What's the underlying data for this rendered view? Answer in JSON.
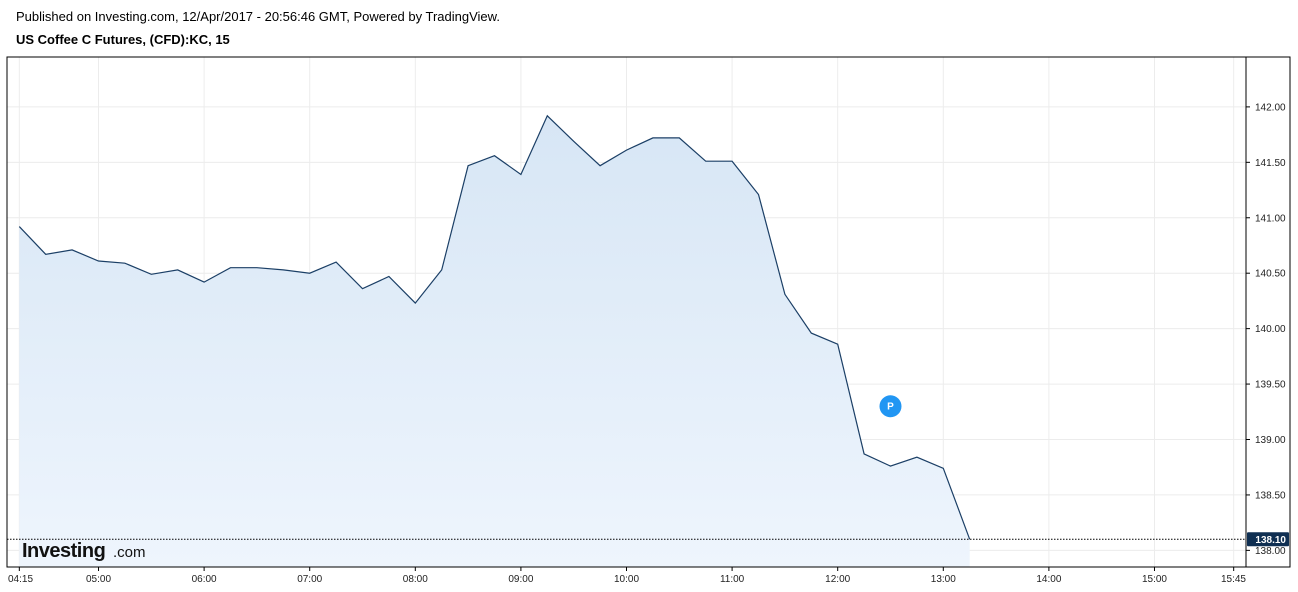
{
  "header": {
    "published": "Published on Investing.com, 12/Apr/2017 - 20:56:46 GMT, Powered by TradingView.",
    "symbol": "US Coffee C Futures, (CFD):KC, 15"
  },
  "logo": {
    "main": "Investing",
    "suffix": ".com"
  },
  "marker": {
    "label": "P",
    "time": "12:30",
    "value": 139.3,
    "color": "#2196f3"
  },
  "colors": {
    "line": "#1b3f66",
    "fill_top": "#d7e6f5",
    "fill_bottom": "#eef5fd",
    "last_badge": "#0f2f52",
    "grid": "#ececec"
  },
  "chart_data": {
    "type": "area",
    "title": "US Coffee C Futures, (CFD):KC, 15",
    "xlabel": "",
    "ylabel": "",
    "x": [
      "04:15",
      "04:30",
      "04:45",
      "05:00",
      "05:15",
      "05:30",
      "05:45",
      "06:00",
      "06:15",
      "06:30",
      "06:45",
      "07:00",
      "07:15",
      "07:30",
      "07:45",
      "08:00",
      "08:15",
      "08:30",
      "08:45",
      "09:00",
      "09:15",
      "09:30",
      "09:45",
      "10:00",
      "10:15",
      "10:30",
      "10:45",
      "11:00",
      "11:15",
      "11:30",
      "11:45",
      "12:00",
      "12:15",
      "12:30",
      "12:45",
      "13:00",
      "13:15"
    ],
    "series": [
      {
        "values": [
          140.92,
          140.67,
          140.71,
          140.61,
          140.59,
          140.49,
          140.53,
          140.42,
          140.55,
          140.55,
          140.53,
          140.5,
          140.6,
          140.36,
          140.47,
          140.23,
          140.53,
          141.47,
          141.56,
          141.39,
          141.92,
          141.69,
          141.47,
          141.61,
          141.72,
          141.72,
          141.51,
          141.51,
          141.21,
          140.31,
          139.96,
          139.86,
          138.87,
          138.76,
          138.84,
          138.74,
          138.1
        ]
      }
    ],
    "x_ticks": [
      "04:15",
      "05:00",
      "06:00",
      "07:00",
      "08:00",
      "09:00",
      "10:00",
      "11:00",
      "12:00",
      "13:00",
      "14:00",
      "15:00",
      "15:45"
    ],
    "y_ticks": [
      "142.00",
      "141.50",
      "141.00",
      "140.50",
      "140.00",
      "139.50",
      "139.00",
      "138.50",
      "138.00"
    ],
    "ylim": [
      137.85,
      142.45
    ],
    "last_value": "138.10",
    "grid": true
  }
}
